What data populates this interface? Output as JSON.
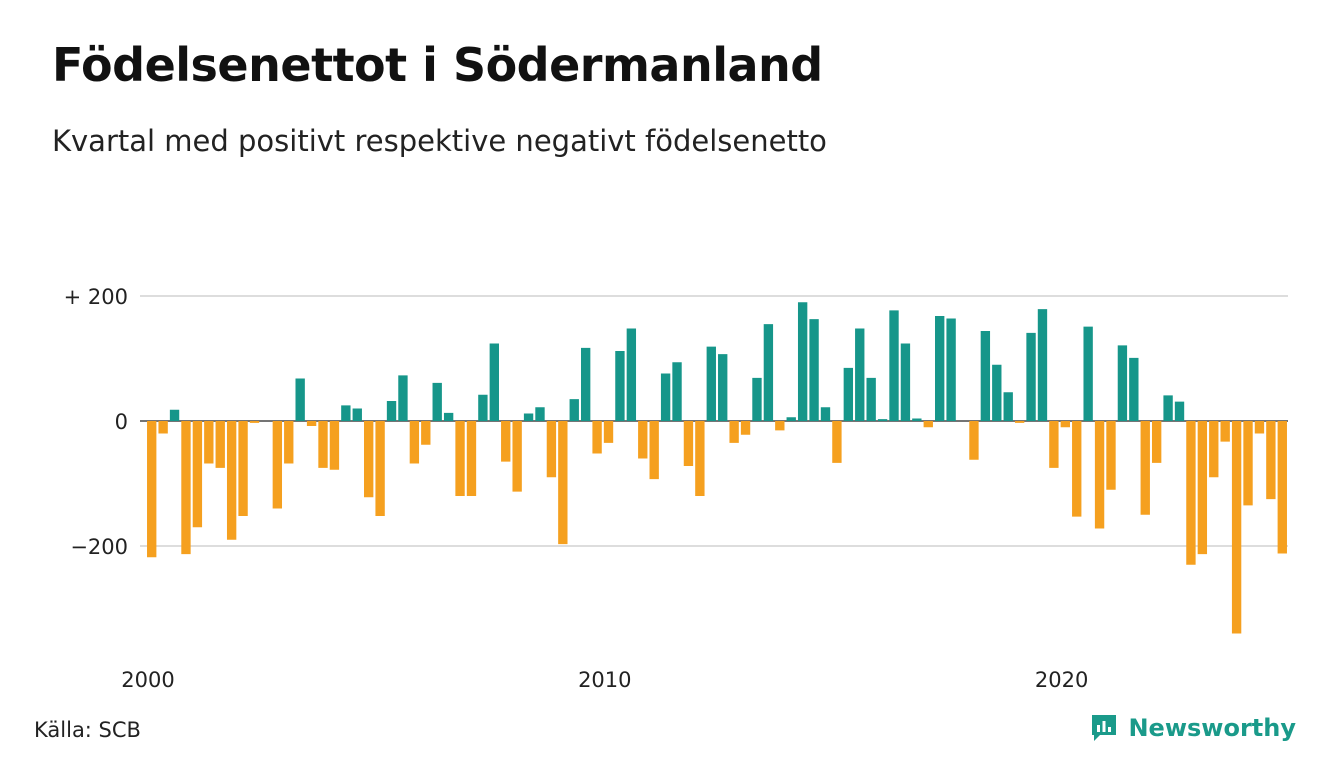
{
  "header": {
    "title": "Födelsenettot i Södermanland",
    "subtitle": "Kvartal med positivt respektive negativt födelsenetto"
  },
  "footer": {
    "source": "Källa: SCB",
    "brand": "Newsworthy"
  },
  "colors": {
    "positive": "#16968a",
    "negative": "#f5a01f",
    "grid": "#dddddd",
    "brand": "#1a9a8a"
  },
  "chart_data": {
    "type": "bar",
    "ylim": [
      -340,
      200
    ],
    "yticks": [
      200,
      0,
      -200
    ],
    "ytick_labels": [
      "+ 200",
      "0",
      "−200"
    ],
    "xtick_labels": [
      "2000",
      "2010",
      "2020"
    ],
    "grid": true,
    "start_year": 2000,
    "values": [
      -218,
      -20,
      18,
      -213,
      -170,
      -68,
      -75,
      -190,
      -152,
      -3,
      0,
      -140,
      -68,
      68,
      -8,
      -75,
      -78,
      25,
      20,
      -122,
      -152,
      32,
      73,
      -68,
      -38,
      61,
      13,
      -120,
      -120,
      42,
      124,
      -65,
      -113,
      12,
      22,
      -90,
      -197,
      35,
      117,
      -52,
      -35,
      112,
      148,
      -60,
      -93,
      76,
      94,
      -72,
      -120,
      119,
      107,
      -35,
      -22,
      69,
      155,
      -15,
      6,
      190,
      163,
      22,
      -67,
      85,
      148,
      69,
      3,
      177,
      124,
      4,
      -10,
      168,
      164,
      0,
      -62,
      144,
      90,
      46,
      -3,
      141,
      179,
      -75,
      -10,
      -153,
      151,
      -172,
      -110,
      121,
      101,
      -150,
      -67,
      41,
      31,
      -230,
      -213,
      -90,
      -33,
      -340,
      -135,
      -20,
      -125,
      -212
    ]
  }
}
